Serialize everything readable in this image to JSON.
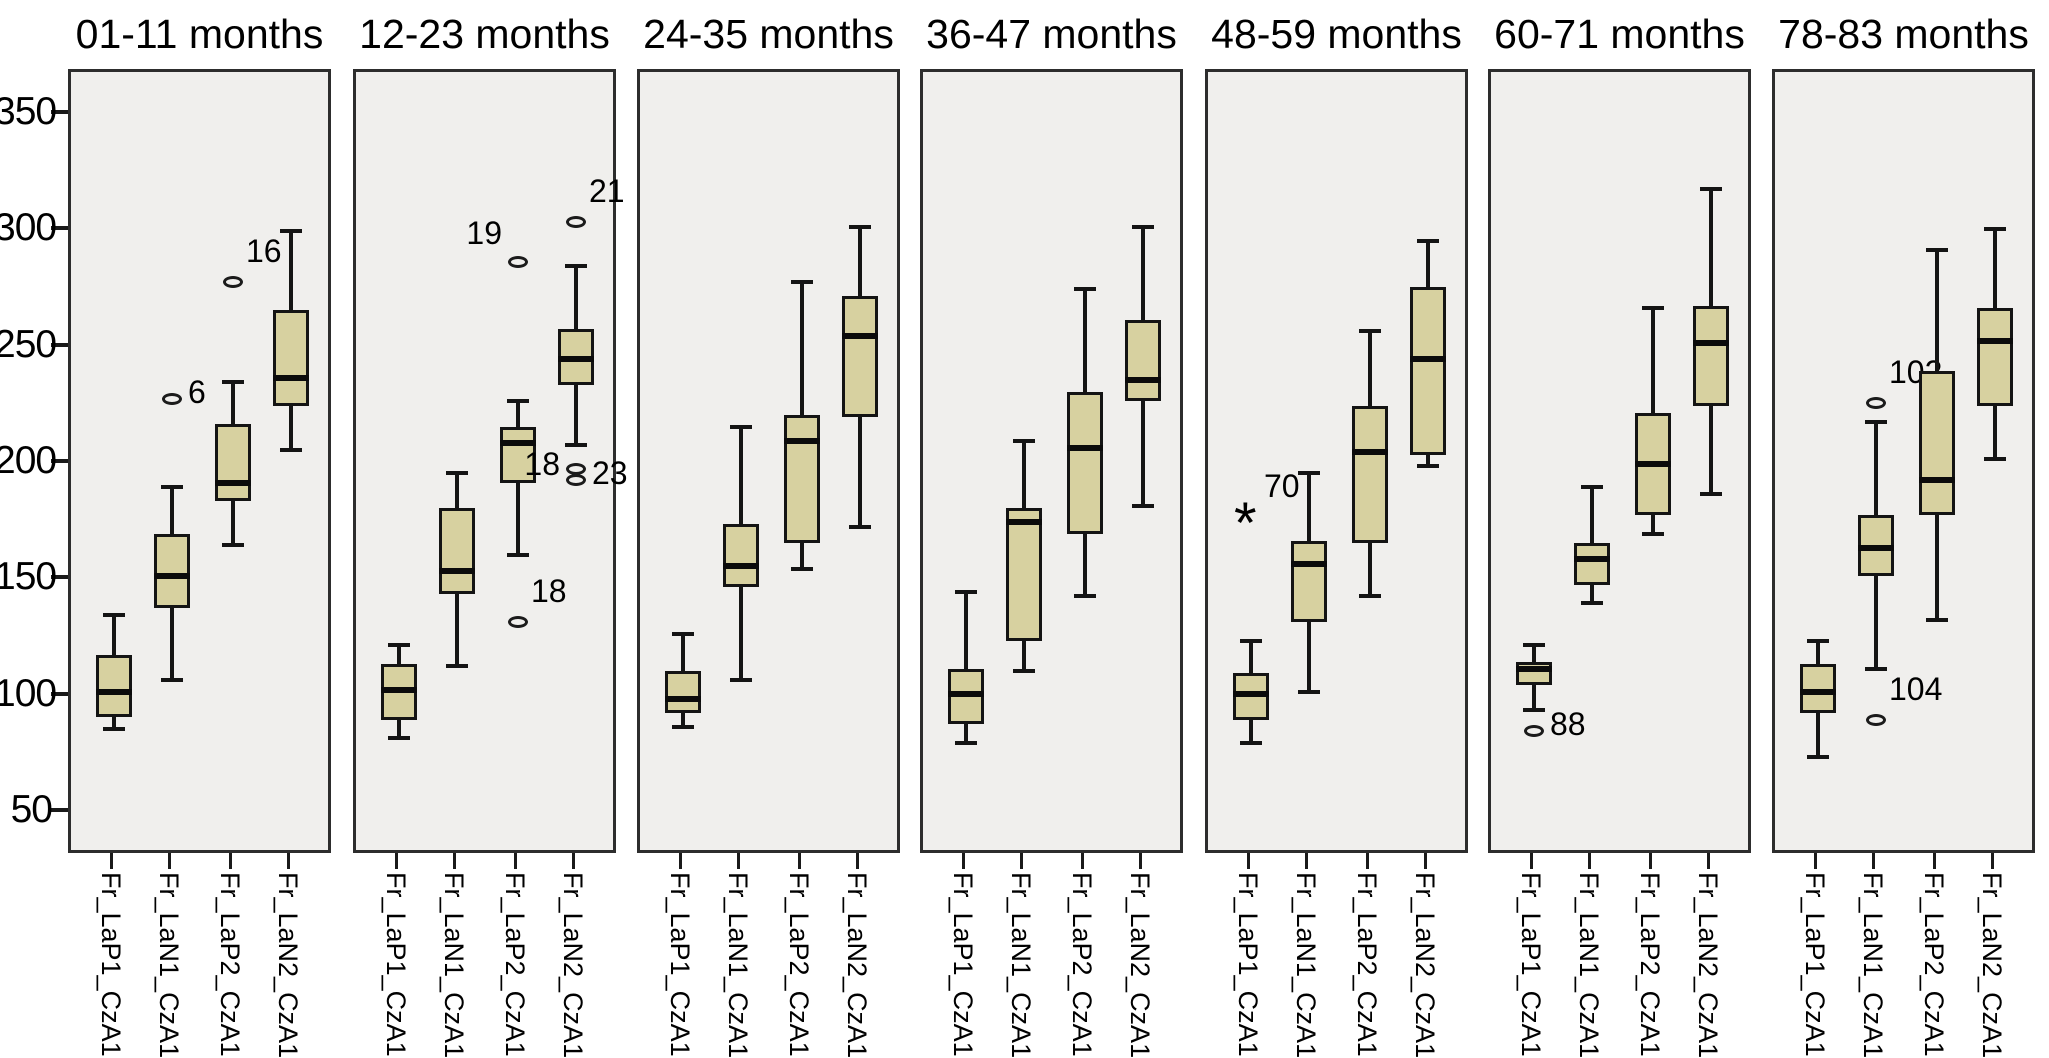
{
  "figure": {
    "kind": "multi-panel boxplot figure",
    "y_unit_labels": [
      "350",
      "300",
      "250",
      "200",
      "150",
      "100",
      "50"
    ]
  },
  "chart_data": {
    "type": "boxplot",
    "layout_hint": "7 side-by-side panels sharing one y axis, legend none, no gridlines",
    "ylim": [
      50,
      350
    ],
    "y_ticks": [
      350,
      300,
      250,
      200,
      150,
      100,
      50
    ],
    "categories": [
      "Fr_LaP1_CzA1",
      "Fr_LaN1_CzA1",
      "Fr_LaP2_CzA1",
      "Fr_LaN2_CzA1"
    ],
    "colors": {
      "box_fill": "#d7d1a0",
      "box_border": "#141414",
      "median": "#0b0b0b",
      "panel_bg": "#f0efed",
      "panel_border": "#2d2d2d",
      "text": "#000000"
    },
    "panels": [
      {
        "title": "01-11 months",
        "boxes": [
          {
            "category": "Fr_LaP1_CzA1",
            "whisker_low": 86,
            "q1": 91,
            "median": 102,
            "q3": 118,
            "whisker_high": 135,
            "outliers": []
          },
          {
            "category": "Fr_LaN1_CzA1",
            "whisker_low": 107,
            "q1": 138,
            "median": 152,
            "q3": 170,
            "whisker_high": 190,
            "outliers": [
              {
                "value": 228,
                "label": "6",
                "marker": "circle",
                "label_side": "right"
              }
            ]
          },
          {
            "category": "Fr_LaP2_CzA1",
            "whisker_low": 165,
            "q1": 184,
            "median": 192,
            "q3": 217,
            "whisker_high": 235,
            "outliers": [
              {
                "value": 278,
                "label": "16",
                "marker": "circle",
                "label_side": "above-right"
              }
            ]
          },
          {
            "category": "Fr_LaN2_CzA1",
            "whisker_low": 206,
            "q1": 225,
            "median": 237,
            "q3": 266,
            "whisker_high": 300,
            "outliers": []
          }
        ]
      },
      {
        "title": "12-23 months",
        "boxes": [
          {
            "category": "Fr_LaP1_CzA1",
            "whisker_low": 82,
            "q1": 90,
            "median": 103,
            "q3": 114,
            "whisker_high": 122,
            "outliers": []
          },
          {
            "category": "Fr_LaN1_CzA1",
            "whisker_low": 113,
            "q1": 144,
            "median": 154,
            "q3": 181,
            "whisker_high": 196,
            "outliers": []
          },
          {
            "category": "Fr_LaP2_CzA1",
            "whisker_low": 161,
            "q1": 192,
            "median": 209,
            "q3": 216,
            "whisker_high": 227,
            "outliers": [
              {
                "value": 287,
                "label": "19",
                "marker": "circle",
                "label_side": "above-left"
              },
              {
                "value": 132,
                "label": "18",
                "marker": "circle",
                "label_side": "above-right"
              }
            ]
          },
          {
            "category": "Fr_LaN2_CzA1",
            "whisker_low": 208,
            "q1": 234,
            "median": 245,
            "q3": 258,
            "whisker_high": 285,
            "outliers": [
              {
                "value": 304,
                "label": "21",
                "marker": "circle",
                "label_side": "above-right"
              },
              {
                "value": 198,
                "label": "18",
                "marker": "circle",
                "label_side": "left"
              },
              {
                "value": 193,
                "label": "23",
                "marker": "circle",
                "label_side": "right"
              }
            ]
          }
        ]
      },
      {
        "title": "24-35 months",
        "boxes": [
          {
            "category": "Fr_LaP1_CzA1",
            "whisker_low": 87,
            "q1": 93,
            "median": 99,
            "q3": 111,
            "whisker_high": 127,
            "outliers": []
          },
          {
            "category": "Fr_LaN1_CzA1",
            "whisker_low": 107,
            "q1": 147,
            "median": 156,
            "q3": 174,
            "whisker_high": 216,
            "outliers": []
          },
          {
            "category": "Fr_LaP2_CzA1",
            "whisker_low": 155,
            "q1": 166,
            "median": 210,
            "q3": 221,
            "whisker_high": 278,
            "outliers": []
          },
          {
            "category": "Fr_LaN2_CzA1",
            "whisker_low": 173,
            "q1": 220,
            "median": 255,
            "q3": 272,
            "whisker_high": 302,
            "outliers": []
          }
        ]
      },
      {
        "title": "36-47 months",
        "boxes": [
          {
            "category": "Fr_LaP1_CzA1",
            "whisker_low": 80,
            "q1": 88,
            "median": 101,
            "q3": 112,
            "whisker_high": 145,
            "outliers": []
          },
          {
            "category": "Fr_LaN1_CzA1",
            "whisker_low": 111,
            "q1": 124,
            "median": 175,
            "q3": 181,
            "whisker_high": 210,
            "outliers": []
          },
          {
            "category": "Fr_LaP2_CzA1",
            "whisker_low": 143,
            "q1": 170,
            "median": 207,
            "q3": 231,
            "whisker_high": 275,
            "outliers": []
          },
          {
            "category": "Fr_LaN2_CzA1",
            "whisker_low": 182,
            "q1": 227,
            "median": 236,
            "q3": 262,
            "whisker_high": 302,
            "outliers": []
          }
        ]
      },
      {
        "title": "48-59 months",
        "boxes": [
          {
            "category": "Fr_LaP1_CzA1",
            "whisker_low": 80,
            "q1": 90,
            "median": 101,
            "q3": 110,
            "whisker_high": 124,
            "outliers": [
              {
                "value": 177,
                "label": "70",
                "marker": "star",
                "label_side": "above-right"
              }
            ]
          },
          {
            "category": "Fr_LaN1_CzA1",
            "whisker_low": 102,
            "q1": 132,
            "median": 157,
            "q3": 167,
            "whisker_high": 196,
            "outliers": []
          },
          {
            "category": "Fr_LaP2_CzA1",
            "whisker_low": 143,
            "q1": 166,
            "median": 205,
            "q3": 225,
            "whisker_high": 257,
            "outliers": []
          },
          {
            "category": "Fr_LaN2_CzA1",
            "whisker_low": 199,
            "q1": 204,
            "median": 245,
            "q3": 276,
            "whisker_high": 296,
            "outliers": []
          }
        ]
      },
      {
        "title": "60-71 months",
        "boxes": [
          {
            "category": "Fr_LaP1_CzA1",
            "whisker_low": 94,
            "q1": 105,
            "median": 112,
            "q3": 115,
            "whisker_high": 122,
            "outliers": [
              {
                "value": 85,
                "label": "88",
                "marker": "circle",
                "label_side": "right"
              }
            ]
          },
          {
            "category": "Fr_LaN1_CzA1",
            "whisker_low": 140,
            "q1": 148,
            "median": 159,
            "q3": 166,
            "whisker_high": 190,
            "outliers": []
          },
          {
            "category": "Fr_LaP2_CzA1",
            "whisker_low": 170,
            "q1": 178,
            "median": 200,
            "q3": 222,
            "whisker_high": 267,
            "outliers": []
          },
          {
            "category": "Fr_LaN2_CzA1",
            "whisker_low": 187,
            "q1": 225,
            "median": 252,
            "q3": 268,
            "whisker_high": 318,
            "outliers": []
          }
        ]
      },
      {
        "title": "78-83 months",
        "boxes": [
          {
            "category": "Fr_LaP1_CzA1",
            "whisker_low": 74,
            "q1": 93,
            "median": 102,
            "q3": 114,
            "whisker_high": 124,
            "outliers": []
          },
          {
            "category": "Fr_LaN1_CzA1",
            "whisker_low": 112,
            "q1": 152,
            "median": 164,
            "q3": 178,
            "whisker_high": 218,
            "outliers": [
              {
                "value": 226,
                "label": "102",
                "marker": "circle",
                "label_side": "above-right"
              },
              {
                "value": 90,
                "label": "104",
                "marker": "circle",
                "label_side": "above-right"
              }
            ]
          },
          {
            "category": "Fr_LaP2_CzA1",
            "whisker_low": 133,
            "q1": 178,
            "median": 193,
            "q3": 240,
            "whisker_high": 292,
            "outliers": []
          },
          {
            "category": "Fr_LaN2_CzA1",
            "whisker_low": 202,
            "q1": 225,
            "median": 253,
            "q3": 267,
            "whisker_high": 301,
            "outliers": []
          }
        ]
      }
    ]
  }
}
